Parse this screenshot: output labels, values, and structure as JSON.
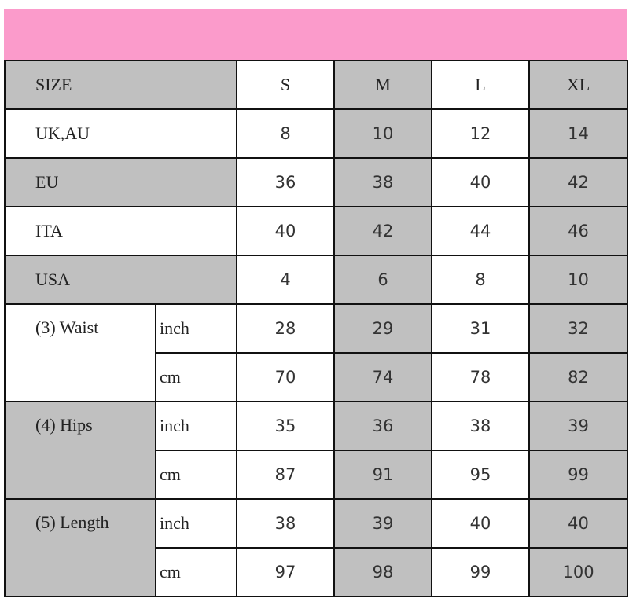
{
  "colors": {
    "band": "#fb9bcb",
    "shade": "#c0c0c0",
    "white": "#ffffff"
  },
  "header": {
    "label": "SIZE",
    "sizes": [
      "S",
      "M",
      "L",
      "XL"
    ]
  },
  "simple_rows": [
    {
      "label": "UK,AU",
      "values": [
        "8",
        "10",
        "12",
        "14"
      ],
      "label_shaded": false
    },
    {
      "label": "EU",
      "values": [
        "36",
        "38",
        "40",
        "42"
      ],
      "label_shaded": true
    },
    {
      "label": "ITA",
      "values": [
        "40",
        "42",
        "44",
        "46"
      ],
      "label_shaded": false
    },
    {
      "label": "USA",
      "values": [
        "4",
        "6",
        "8",
        "10"
      ],
      "label_shaded": true
    }
  ],
  "measure_rows": [
    {
      "label": "(3) Waist",
      "label_shaded": false,
      "units": [
        {
          "unit": "inch",
          "values": [
            "28",
            "29",
            "31",
            "32"
          ]
        },
        {
          "unit": "cm",
          "values": [
            "70",
            "74",
            "78",
            "82"
          ]
        }
      ]
    },
    {
      "label": "(4) Hips",
      "label_shaded": true,
      "units": [
        {
          "unit": "inch",
          "values": [
            "35",
            "36",
            "38",
            "39"
          ]
        },
        {
          "unit": "cm",
          "values": [
            "87",
            "91",
            "95",
            "99"
          ]
        }
      ]
    },
    {
      "label": "(5) Length",
      "label_shaded": true,
      "units": [
        {
          "unit": "inch",
          "values": [
            "38",
            "39",
            "40",
            "40"
          ]
        },
        {
          "unit": "cm",
          "values": [
            "97",
            "98",
            "99",
            "100"
          ]
        }
      ]
    }
  ]
}
